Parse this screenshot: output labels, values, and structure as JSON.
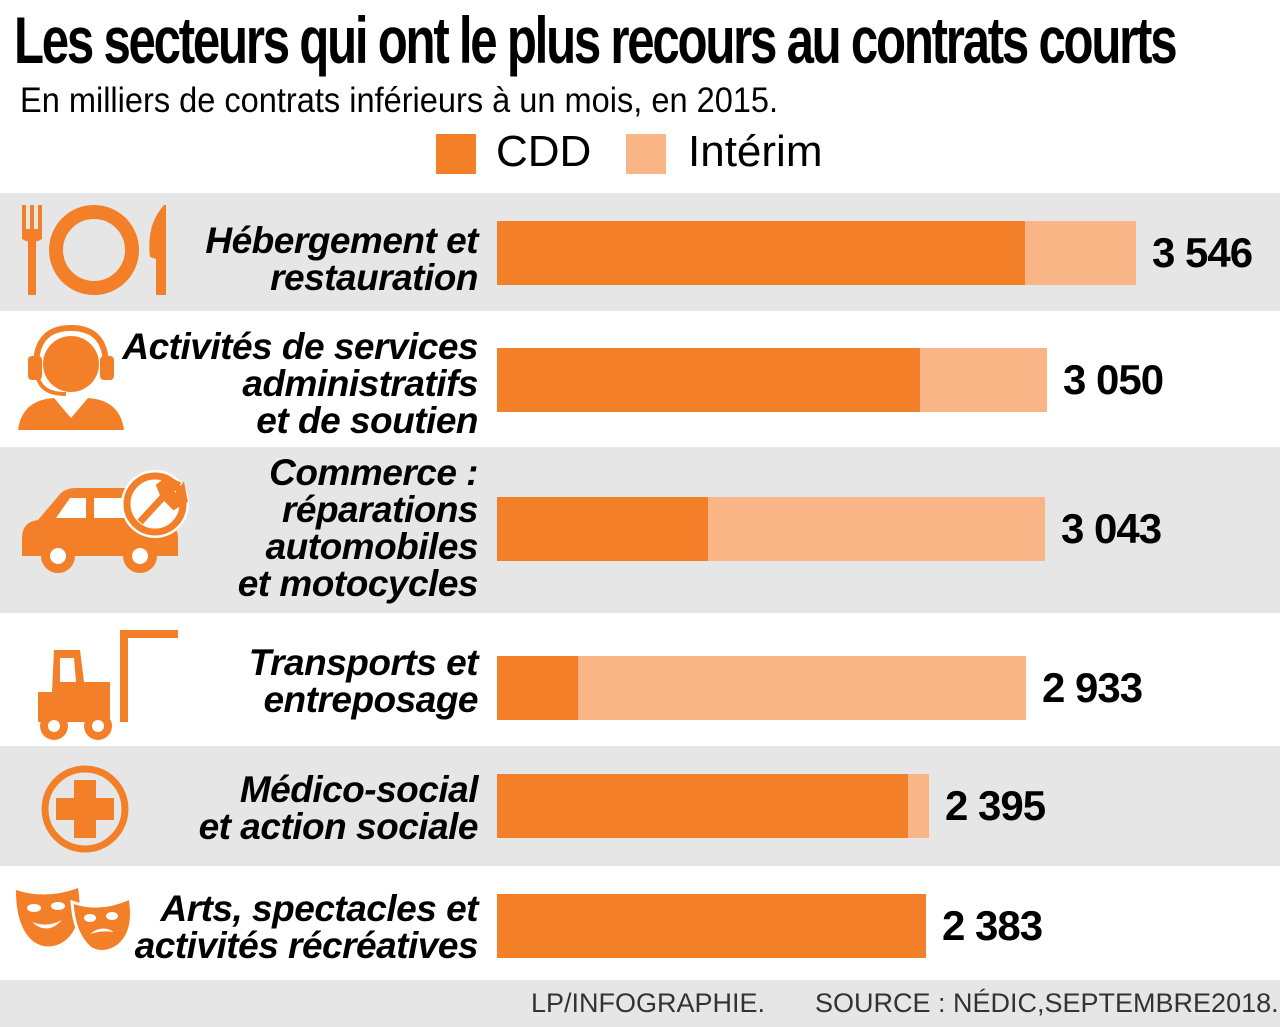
{
  "title": "Les secteurs qui ont le plus recours au contrats courts",
  "subtitle": "En milliers de contrats inférieurs à un mois, en 2015.",
  "colors": {
    "cdd": "#f47f29",
    "interim": "#f9b585",
    "band": "#e6e6e6",
    "icon": "#f47f29"
  },
  "chart_data": {
    "type": "bar",
    "orientation": "horizontal",
    "stacked": true,
    "title": "Les secteurs qui ont le plus recours au contrats courts",
    "subtitle": "En milliers de contrats inférieurs à un mois, en 2015.",
    "legend": [
      "CDD",
      "Intérim"
    ],
    "legend_position": "top",
    "categories": [
      "Hébergement et restauration",
      "Activités de services administratifs et de soutien",
      "Commerce : réparations automobiles et motocycles",
      "Transports et entreposage",
      "Médico-social et action sociale",
      "Arts, spectacles et activités récréatives"
    ],
    "series": [
      {
        "name": "CDD",
        "values": [
          2930,
          2350,
          1170,
          450,
          2280,
          2460
        ]
      },
      {
        "name": "Intérim",
        "values": [
          616,
          700,
          1873,
          2483,
          115,
          -77
        ]
      }
    ],
    "totals": [
      "3 546",
      "3 050",
      "3 043",
      "2 933",
      "2 395",
      "2 383"
    ],
    "total_values": [
      3546,
      3050,
      3043,
      2933,
      2395,
      2383
    ]
  },
  "rows": [
    {
      "label": "Hébergement et\nrestauration",
      "icon": "cutlery-plate-icon",
      "band": true
    },
    {
      "label": "Activités de services\nadministratifs\net de soutien",
      "icon": "headset-operator-icon",
      "band": false
    },
    {
      "label": "Commerce :\nréparations\nautomobiles\net motocycles",
      "icon": "car-wrench-icon",
      "band": true
    },
    {
      "label": "Transports et\nentreposage",
      "icon": "forklift-icon",
      "band": false
    },
    {
      "label": "Médico-social\net action sociale",
      "icon": "medical-cross-icon",
      "band": true
    },
    {
      "label": "Arts, spectacles et\nactivités récréatives",
      "icon": "theater-masks-icon",
      "band": false
    }
  ],
  "footer": {
    "credit": "LP/INFOGRAPHIE.",
    "source": "SOURCE : NÉDIC,SEPTEMBRE2018."
  }
}
